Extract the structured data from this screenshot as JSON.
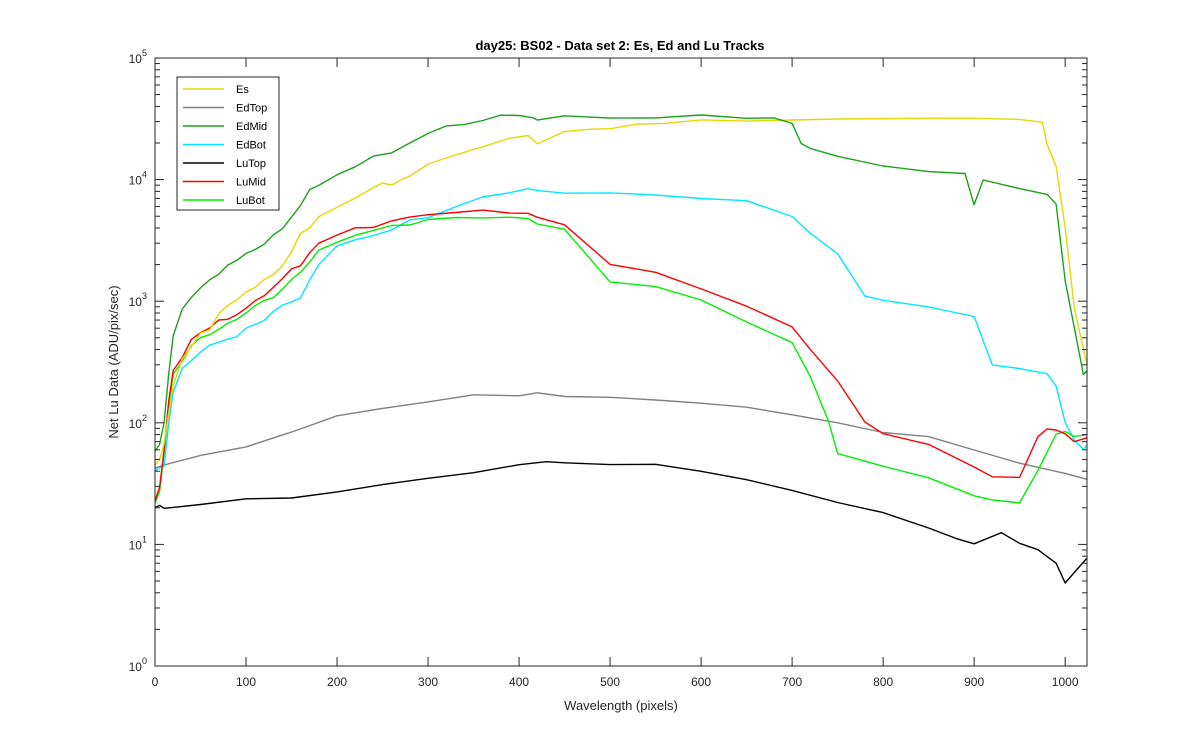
{
  "chart_data": {
    "type": "line",
    "title": "day25: BS02 - Data set 2: Es, Ed and Lu Tracks",
    "xlabel": "Wavelength (pixels)",
    "ylabel": "Net Lu Data (ADU/pix/sec)",
    "xlim": [
      0,
      1024
    ],
    "ylim": [
      1,
      100000
    ],
    "yscale": "log",
    "grid": false,
    "legend_location": "top-left",
    "x_ticks": [
      0,
      100,
      200,
      300,
      400,
      500,
      600,
      700,
      800,
      900,
      1000
    ],
    "y_ticks": [
      {
        "value": 1,
        "base": "10",
        "exp": "0"
      },
      {
        "value": 10,
        "base": "10",
        "exp": "1"
      },
      {
        "value": 100,
        "base": "10",
        "exp": "2"
      },
      {
        "value": 1000,
        "base": "10",
        "exp": "3"
      },
      {
        "value": 10000,
        "base": "10",
        "exp": "4"
      },
      {
        "value": 100000,
        "base": "10",
        "exp": "5"
      }
    ],
    "series": [
      {
        "name": "Es",
        "color": "#e6d800",
        "x": [
          0,
          5,
          10,
          15,
          20,
          30,
          40,
          50,
          60,
          70,
          80,
          90,
          100,
          110,
          120,
          130,
          140,
          150,
          160,
          170,
          180,
          200,
          220,
          240,
          250,
          260,
          270,
          280,
          300,
          330,
          360,
          390,
          410,
          420,
          450,
          480,
          500,
          530,
          560,
          600,
          650,
          700,
          750,
          800,
          850,
          900,
          950,
          975,
          980,
          990,
          1000,
          1010,
          1024
        ],
        "y": [
          45,
          50,
          65,
          120,
          200,
          340,
          420,
          550,
          600,
          800,
          900,
          1000,
          1200,
          1300,
          1500,
          1700,
          2000,
          2500,
          3500,
          4000,
          5000,
          6000,
          7000,
          8500,
          9500,
          9000,
          10000,
          11000,
          13000,
          16000,
          19000,
          22000,
          23000,
          20000,
          24000,
          26000,
          27000,
          28000,
          29000,
          30000,
          31000,
          31000,
          31000,
          32000,
          32000,
          32000,
          31000,
          29000,
          20000,
          13000,
          4000,
          900,
          300
        ]
      },
      {
        "name": "EdTop",
        "color": "#808080",
        "x": [
          0,
          10,
          50,
          100,
          150,
          200,
          250,
          300,
          350,
          400,
          420,
          450,
          500,
          550,
          600,
          650,
          700,
          750,
          800,
          850,
          900,
          950,
          1000,
          1024
        ],
        "y": [
          43,
          45,
          52,
          65,
          85,
          110,
          135,
          150,
          165,
          170,
          170,
          165,
          160,
          155,
          145,
          135,
          115,
          100,
          85,
          75,
          60,
          48,
          37,
          33
        ]
      },
      {
        "name": "EdMid",
        "color": "#1aa31a",
        "x": [
          0,
          5,
          10,
          15,
          20,
          30,
          40,
          50,
          60,
          70,
          80,
          90,
          100,
          110,
          120,
          130,
          140,
          150,
          160,
          170,
          180,
          200,
          220,
          240,
          260,
          280,
          300,
          320,
          340,
          360,
          380,
          400,
          415,
          420,
          450,
          500,
          550,
          600,
          650,
          680,
          700,
          710,
          720,
          750,
          800,
          850,
          890,
          900,
          910,
          950,
          980,
          990,
          1000,
          1010,
          1020,
          1024
        ],
        "y": [
          60,
          65,
          100,
          250,
          500,
          850,
          1100,
          1300,
          1500,
          1700,
          2000,
          2100,
          2400,
          2700,
          3000,
          3500,
          4000,
          5000,
          6000,
          8000,
          9000,
          11000,
          13000,
          15000,
          17000,
          20000,
          24000,
          27000,
          29000,
          31000,
          33000,
          34000,
          33000,
          31000,
          33000,
          32000,
          33000,
          33000,
          32000,
          31000,
          30000,
          20000,
          18000,
          15000,
          13000,
          12000,
          11000,
          6000,
          10000,
          8500,
          7500,
          6500,
          1500,
          600,
          250,
          270
        ]
      },
      {
        "name": "EdBot",
        "color": "#00e8ff",
        "x": [
          0,
          5,
          10,
          15,
          20,
          30,
          40,
          50,
          60,
          70,
          80,
          90,
          100,
          110,
          120,
          130,
          140,
          150,
          160,
          170,
          180,
          200,
          220,
          240,
          260,
          280,
          300,
          330,
          360,
          390,
          410,
          420,
          450,
          500,
          550,
          600,
          650,
          700,
          720,
          750,
          780,
          800,
          850,
          900,
          920,
          950,
          980,
          990,
          1000,
          1010,
          1020,
          1024
        ],
        "y": [
          40,
          42,
          45,
          100,
          180,
          280,
          330,
          380,
          420,
          450,
          500,
          520,
          600,
          650,
          700,
          800,
          900,
          1000,
          1100,
          1500,
          2000,
          2800,
          3200,
          3500,
          3900,
          4500,
          5000,
          6000,
          7000,
          7800,
          8500,
          8000,
          8000,
          7500,
          7500,
          7200,
          6500,
          5000,
          3500,
          2500,
          1100,
          1000,
          900,
          750,
          300,
          280,
          250,
          200,
          100,
          70,
          60,
          65
        ]
      },
      {
        "name": "LuTop",
        "color": "#000000",
        "x": [
          0,
          5,
          10,
          20,
          50,
          100,
          150,
          200,
          250,
          300,
          350,
          400,
          430,
          450,
          500,
          550,
          600,
          650,
          700,
          750,
          800,
          850,
          880,
          900,
          930,
          950,
          970,
          990,
          1000,
          1010,
          1024
        ],
        "y": [
          20,
          21,
          20,
          20,
          22,
          23,
          24,
          28,
          30,
          35,
          40,
          44,
          48,
          47,
          46,
          45,
          40,
          34,
          28,
          22,
          18,
          14,
          11,
          10,
          13,
          10,
          9,
          7,
          5,
          6,
          8
        ]
      },
      {
        "name": "LuMid",
        "color": "#ff0000",
        "x": [
          0,
          5,
          10,
          15,
          20,
          30,
          40,
          50,
          60,
          70,
          80,
          90,
          100,
          110,
          120,
          130,
          140,
          150,
          160,
          170,
          180,
          200,
          220,
          240,
          260,
          280,
          300,
          330,
          360,
          390,
          410,
          420,
          450,
          500,
          550,
          600,
          650,
          700,
          720,
          750,
          780,
          800,
          850,
          900,
          920,
          950,
          970,
          980,
          990,
          1000,
          1010,
          1024
        ],
        "y": [
          22,
          30,
          60,
          150,
          280,
          350,
          480,
          550,
          600,
          680,
          700,
          800,
          900,
          1000,
          1100,
          1300,
          1500,
          1800,
          2000,
          2600,
          3000,
          3500,
          3900,
          4200,
          4500,
          4900,
          5100,
          5300,
          5500,
          5500,
          5200,
          4900,
          4300,
          2000,
          1700,
          1300,
          900,
          600,
          400,
          230,
          100,
          80,
          65,
          45,
          35,
          35,
          80,
          90,
          85,
          80,
          70,
          75
        ]
      },
      {
        "name": "LuBot",
        "color": "#00f000",
        "x": [
          0,
          5,
          10,
          15,
          20,
          30,
          40,
          50,
          60,
          70,
          80,
          90,
          100,
          110,
          120,
          130,
          140,
          150,
          160,
          170,
          180,
          200,
          220,
          240,
          260,
          280,
          300,
          330,
          360,
          390,
          410,
          420,
          450,
          500,
          550,
          600,
          650,
          700,
          720,
          740,
          750,
          800,
          850,
          900,
          920,
          950,
          970,
          990,
          1000,
          1010,
          1024
        ],
        "y": [
          22,
          28,
          55,
          140,
          250,
          320,
          420,
          500,
          550,
          600,
          650,
          700,
          800,
          900,
          1000,
          1100,
          1300,
          1500,
          1700,
          2100,
          2600,
          3100,
          3500,
          3800,
          4100,
          4400,
          4600,
          4800,
          5000,
          4900,
          4700,
          4400,
          3800,
          1500,
          1300,
          1000,
          700,
          450,
          250,
          100,
          55,
          45,
          35,
          25,
          23,
          22,
          40,
          80,
          85,
          80,
          80
        ]
      }
    ]
  }
}
